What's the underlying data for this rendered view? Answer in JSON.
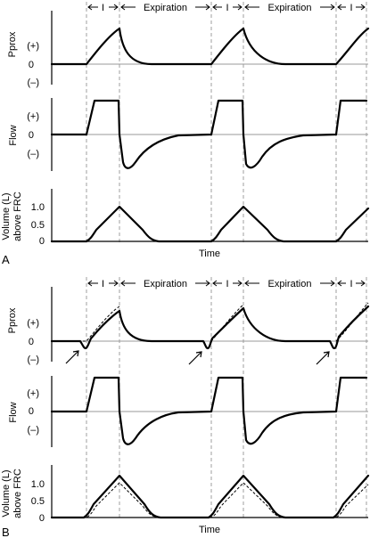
{
  "panel_a": {
    "letter": "A",
    "phase_inspiration": "I",
    "phase_expiration": "Expiration",
    "pprox": {
      "title": "Pprox",
      "tick_pos": "(+)",
      "tick_zero": "0",
      "tick_neg": "(–)"
    },
    "flow": {
      "title": "Flow",
      "tick_pos": "(+)",
      "tick_zero": "0",
      "tick_neg": "(–)"
    },
    "volume": {
      "title_line1": "Volume (L)",
      "title_line2": "above FRC",
      "tick_1": "1.0",
      "tick_05": "0.5",
      "tick_0": "0"
    },
    "x_label": "Time"
  },
  "panel_b": {
    "letter": "B",
    "phase_inspiration": "I",
    "phase_expiration": "Expiration",
    "pprox": {
      "title": "Pprox",
      "tick_pos": "(+)",
      "tick_zero": "0",
      "tick_neg": "(–)"
    },
    "flow": {
      "title": "Flow",
      "tick_pos": "(+)",
      "tick_zero": "0",
      "tick_neg": "(–)"
    },
    "volume": {
      "title_line1": "Volume (L)",
      "title_line2": "above FRC",
      "tick_1": "1.0",
      "tick_05": "0.5",
      "tick_0": "0"
    },
    "x_label": "Time"
  }
}
